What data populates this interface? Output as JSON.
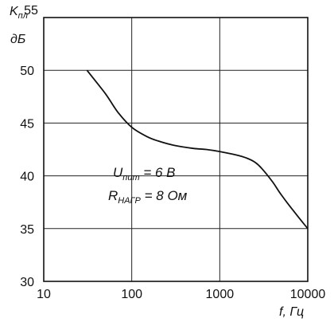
{
  "chart_data": {
    "type": "line",
    "ylabel": {
      "symbol": "K",
      "subscript": "пл",
      "unit": "дБ"
    },
    "xlabel": "f, Гц",
    "x_scale": "log",
    "xlim": [
      10,
      10000
    ],
    "ylim": [
      30,
      55
    ],
    "x_ticks": [
      10,
      100,
      1000,
      10000
    ],
    "x_tick_labels": [
      "10",
      "100",
      "1000",
      "10000"
    ],
    "y_ticks": [
      30,
      35,
      40,
      45,
      50
    ],
    "y_tick_labels": [
      "30",
      "35",
      "40",
      "45",
      "50"
    ],
    "y_top_label": "55",
    "grid": true,
    "series": [
      {
        "x": [
          31,
          50,
          70,
          100,
          150,
          200,
          300,
          500,
          700,
          1000,
          1500,
          2000,
          2500,
          3000,
          4000,
          5000,
          7000,
          10000
        ],
        "y": [
          50,
          47.8,
          46.0,
          44.6,
          43.7,
          43.3,
          42.9,
          42.6,
          42.5,
          42.3,
          42.0,
          41.7,
          41.3,
          40.7,
          39.4,
          38.2,
          36.6,
          35
        ]
      }
    ],
    "annotations": [
      {
        "symbol": "U",
        "subscript": "пит",
        "text": " = 6 В"
      },
      {
        "symbol": "R",
        "subscript": "НАГР",
        "text": " = 8 Ом"
      }
    ]
  }
}
